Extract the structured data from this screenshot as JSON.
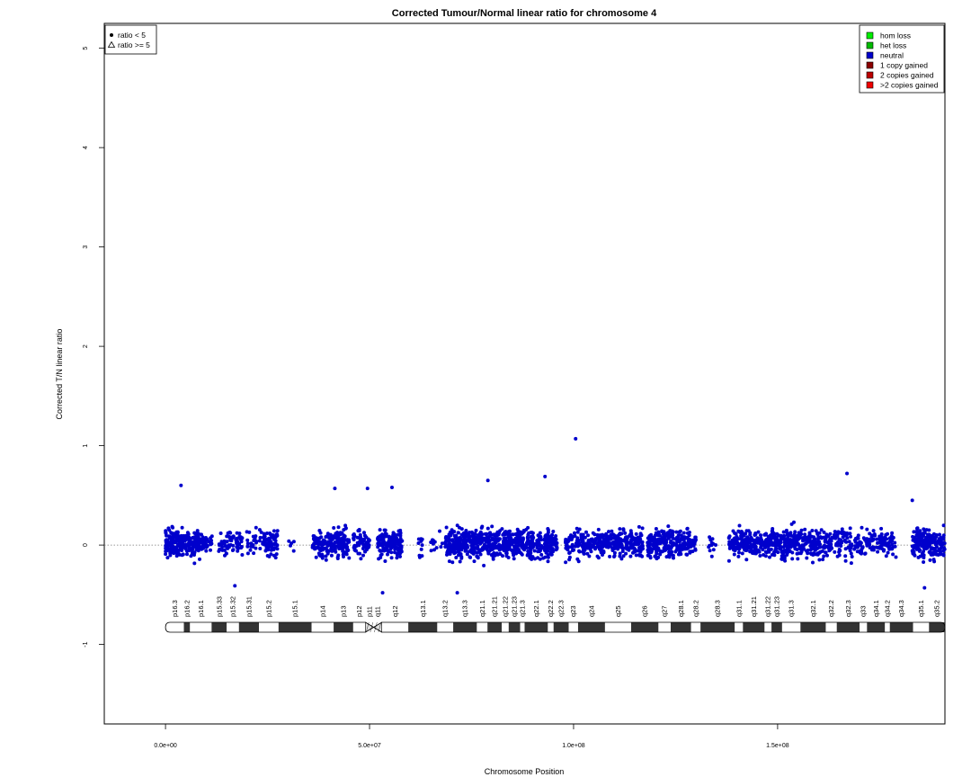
{
  "chart_data": {
    "type": "scatter",
    "title": "Corrected Tumour/Normal linear ratio for chromosome  4",
    "xlabel": "Chromosome Position",
    "ylabel": "Corrected T/N linear ratio",
    "xlim": [
      -15000000,
      191000000
    ],
    "ylim": [
      -1.8,
      5.25
    ],
    "x_ticks": [
      {
        "value": 0,
        "label": "0.0e+00"
      },
      {
        "value": 50000000,
        "label": "5.0e+07"
      },
      {
        "value": 100000000,
        "label": "1.0e+08"
      },
      {
        "value": 150000000,
        "label": "1.5e+08"
      }
    ],
    "y_ticks": [
      -1,
      0,
      1,
      2,
      3,
      4,
      5
    ],
    "reference_line": {
      "y": 0,
      "style": "dotted",
      "color": "#777777"
    },
    "point_color": "#0000cc",
    "clusters": [
      {
        "x_start": 0,
        "x_end": 4200000,
        "n": 130,
        "sd": 0.16
      },
      {
        "x_start": 4300000,
        "x_end": 9500000,
        "n": 120,
        "sd": 0.15
      },
      {
        "x_start": 9600000,
        "x_end": 11500000,
        "n": 25,
        "sd": 0.1
      },
      {
        "x_start": 13000000,
        "x_end": 18800000,
        "n": 70,
        "sd": 0.15
      },
      {
        "x_start": 19500000,
        "x_end": 25000000,
        "n": 40,
        "sd": 0.15
      },
      {
        "x_start": 24000000,
        "x_end": 27500000,
        "n": 55,
        "sd": 0.15
      },
      {
        "x_start": 30000000,
        "x_end": 31500000,
        "n": 5,
        "sd": 0.12
      },
      {
        "x_start": 36000000,
        "x_end": 45000000,
        "n": 180,
        "sd": 0.15
      },
      {
        "x_start": 46000000,
        "x_end": 50000000,
        "n": 70,
        "sd": 0.15
      },
      {
        "x_start": 52000000,
        "x_end": 58000000,
        "n": 150,
        "sd": 0.16
      },
      {
        "x_start": 62000000,
        "x_end": 63000000,
        "n": 10,
        "sd": 0.15
      },
      {
        "x_start": 65000000,
        "x_end": 68000000,
        "n": 12,
        "sd": 0.12
      },
      {
        "x_start": 68500000,
        "x_end": 84000000,
        "n": 420,
        "sd": 0.16
      },
      {
        "x_start": 84000000,
        "x_end": 96000000,
        "n": 260,
        "sd": 0.16
      },
      {
        "x_start": 98000000,
        "x_end": 103000000,
        "n": 80,
        "sd": 0.17
      },
      {
        "x_start": 103000000,
        "x_end": 117000000,
        "n": 280,
        "sd": 0.14
      },
      {
        "x_start": 118000000,
        "x_end": 125000000,
        "n": 150,
        "sd": 0.15
      },
      {
        "x_start": 125000000,
        "x_end": 130000000,
        "n": 100,
        "sd": 0.16
      },
      {
        "x_start": 133000000,
        "x_end": 135000000,
        "n": 12,
        "sd": 0.15
      },
      {
        "x_start": 138000000,
        "x_end": 148000000,
        "n": 220,
        "sd": 0.14
      },
      {
        "x_start": 148000000,
        "x_end": 160000000,
        "n": 260,
        "sd": 0.15
      },
      {
        "x_start": 160000000,
        "x_end": 172000000,
        "n": 160,
        "sd": 0.17
      },
      {
        "x_start": 172000000,
        "x_end": 179000000,
        "n": 90,
        "sd": 0.14
      },
      {
        "x_start": 183000000,
        "x_end": 191000000,
        "n": 210,
        "sd": 0.16
      }
    ],
    "notable_points": [
      {
        "x": 100500000,
        "y": 1.07
      },
      {
        "x": 167000000,
        "y": 0.72
      },
      {
        "x": 93000000,
        "y": 0.69
      },
      {
        "x": 79000000,
        "y": 0.65
      },
      {
        "x": 3800000,
        "y": 0.6
      },
      {
        "x": 55500000,
        "y": 0.58
      },
      {
        "x": 49500000,
        "y": 0.57
      },
      {
        "x": 41500000,
        "y": 0.57
      },
      {
        "x": 53200000,
        "y": -0.48
      },
      {
        "x": 71500000,
        "y": -0.48
      },
      {
        "x": 186000000,
        "y": -0.43
      },
      {
        "x": 17000000,
        "y": -0.41
      },
      {
        "x": 183000000,
        "y": 0.45
      }
    ],
    "ideogram": {
      "centromere": [
        49000000,
        53000000
      ],
      "bands": [
        {
          "start": 0,
          "end": 4500000,
          "stain": "gneg",
          "label": "p16.3"
        },
        {
          "start": 4500000,
          "end": 6000000,
          "stain": "gpos",
          "label": "p16.2"
        },
        {
          "start": 6000000,
          "end": 11300000,
          "stain": "gneg",
          "label": "p16.1"
        },
        {
          "start": 11300000,
          "end": 15000000,
          "stain": "gpos",
          "label": "p15.33"
        },
        {
          "start": 15000000,
          "end": 18000000,
          "stain": "gneg",
          "label": "p15.32"
        },
        {
          "start": 18000000,
          "end": 22900000,
          "stain": "gpos",
          "label": "p15.31"
        },
        {
          "start": 22900000,
          "end": 27700000,
          "stain": "gneg",
          "label": "p15.2"
        },
        {
          "start": 27700000,
          "end": 35800000,
          "stain": "gpos",
          "label": "p15.1"
        },
        {
          "start": 35800000,
          "end": 41200000,
          "stain": "gneg",
          "label": "p14"
        },
        {
          "start": 41200000,
          "end": 46000000,
          "stain": "gpos",
          "label": "p13"
        },
        {
          "start": 46000000,
          "end": 49000000,
          "stain": "gneg",
          "label": "p12"
        },
        {
          "start": 49000000,
          "end": 51000000,
          "stain": "acen",
          "label": "p11"
        },
        {
          "start": 51000000,
          "end": 53000000,
          "stain": "acen",
          "label": "q11"
        },
        {
          "start": 53000000,
          "end": 59500000,
          "stain": "gneg",
          "label": "q12"
        },
        {
          "start": 59500000,
          "end": 66600000,
          "stain": "gpos",
          "label": "q13.1"
        },
        {
          "start": 66600000,
          "end": 70500000,
          "stain": "gneg",
          "label": "q13.2"
        },
        {
          "start": 70500000,
          "end": 76300000,
          "stain": "gpos",
          "label": "q13.3"
        },
        {
          "start": 76300000,
          "end": 78900000,
          "stain": "gneg",
          "label": "q21.1"
        },
        {
          "start": 78900000,
          "end": 82400000,
          "stain": "gpos",
          "label": "q21.21"
        },
        {
          "start": 82400000,
          "end": 84100000,
          "stain": "gneg",
          "label": "q21.22"
        },
        {
          "start": 84100000,
          "end": 86900000,
          "stain": "gpos",
          "label": "q21.23"
        },
        {
          "start": 86900000,
          "end": 88000000,
          "stain": "gneg",
          "label": "q21.3"
        },
        {
          "start": 88000000,
          "end": 93700000,
          "stain": "gpos",
          "label": "q22.1"
        },
        {
          "start": 93700000,
          "end": 95100000,
          "stain": "gneg",
          "label": "q22.2"
        },
        {
          "start": 95100000,
          "end": 98800000,
          "stain": "gpos",
          "label": "q22.3"
        },
        {
          "start": 98800000,
          "end": 101100000,
          "stain": "gneg",
          "label": "q23"
        },
        {
          "start": 101100000,
          "end": 107700000,
          "stain": "gpos",
          "label": "q24"
        },
        {
          "start": 107700000,
          "end": 114100000,
          "stain": "gneg",
          "label": "q25"
        },
        {
          "start": 114100000,
          "end": 120800000,
          "stain": "gpos",
          "label": "q26"
        },
        {
          "start": 120800000,
          "end": 123800000,
          "stain": "gneg",
          "label": "q27"
        },
        {
          "start": 123800000,
          "end": 128800000,
          "stain": "gpos",
          "label": "q28.1"
        },
        {
          "start": 128800000,
          "end": 131100000,
          "stain": "gneg",
          "label": "q28.2"
        },
        {
          "start": 131100000,
          "end": 139500000,
          "stain": "gpos",
          "label": "q28.3"
        },
        {
          "start": 139500000,
          "end": 141500000,
          "stain": "gneg",
          "label": "q31.1"
        },
        {
          "start": 141500000,
          "end": 146800000,
          "stain": "gpos",
          "label": "q31.21"
        },
        {
          "start": 146800000,
          "end": 148500000,
          "stain": "gneg",
          "label": "q31.22"
        },
        {
          "start": 148500000,
          "end": 151100000,
          "stain": "gpos",
          "label": "q31.23"
        },
        {
          "start": 151100000,
          "end": 155600000,
          "stain": "gneg",
          "label": "q31.3"
        },
        {
          "start": 155600000,
          "end": 161800000,
          "stain": "gpos",
          "label": "q32.1"
        },
        {
          "start": 161800000,
          "end": 164500000,
          "stain": "gneg",
          "label": "q32.2"
        },
        {
          "start": 164500000,
          "end": 170100000,
          "stain": "gpos",
          "label": "q32.3"
        },
        {
          "start": 170100000,
          "end": 171900000,
          "stain": "gneg",
          "label": "q33"
        },
        {
          "start": 171900000,
          "end": 176300000,
          "stain": "gpos",
          "label": "q34.1"
        },
        {
          "start": 176300000,
          "end": 177500000,
          "stain": "gneg",
          "label": "q34.2"
        },
        {
          "start": 177500000,
          "end": 183200000,
          "stain": "gpos",
          "label": "q34.3"
        },
        {
          "start": 183200000,
          "end": 187100000,
          "stain": "gneg",
          "label": "q35.1"
        },
        {
          "start": 187100000,
          "end": 191000000,
          "stain": "gpos",
          "label": "q35.2"
        }
      ]
    },
    "legend_left": {
      "placement": "top-left",
      "entries": [
        {
          "label": "ratio < 5",
          "symbol": "dot"
        },
        {
          "label": "ratio >= 5",
          "symbol": "triangle"
        }
      ]
    },
    "legend_right": {
      "placement": "top-right",
      "entries": [
        {
          "label": "hom loss",
          "color": "#00ee00"
        },
        {
          "label": "het loss",
          "color": "#00bb00"
        },
        {
          "label": "neutral",
          "color": "#0000cc"
        },
        {
          "label": "1 copy gained",
          "color": "#8b0000"
        },
        {
          "label": "2 copies gained",
          "color": "#bb0000"
        },
        {
          "label": ">2 copies gained",
          "color": "#ee0000"
        }
      ]
    }
  }
}
